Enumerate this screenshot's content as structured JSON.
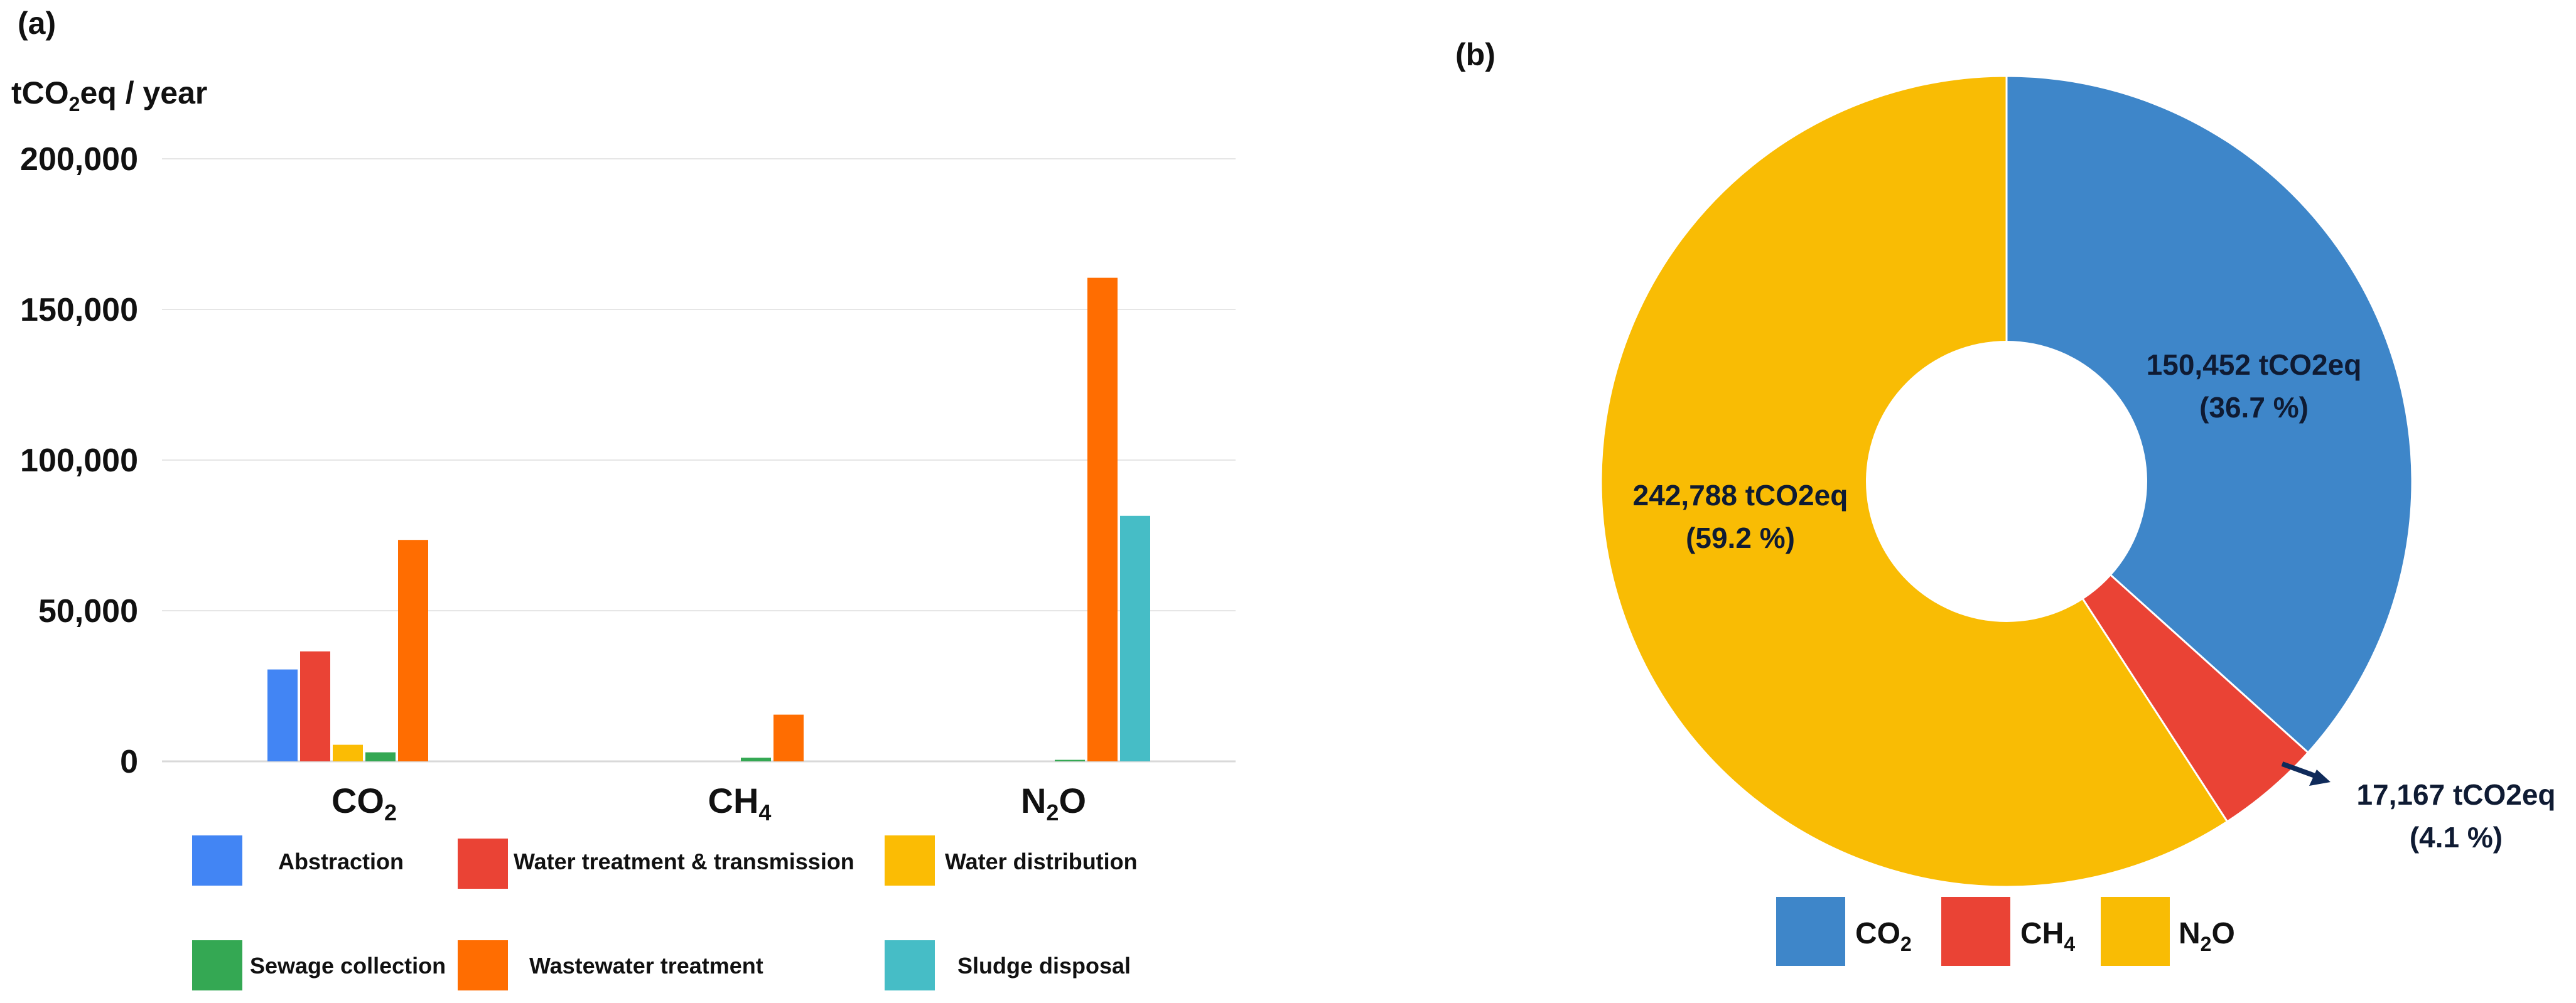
{
  "chart_data": [
    {
      "type": "bar",
      "panel_label": "(a)",
      "ylabel_main": "tCO",
      "ylabel_sub": "2",
      "ylabel_tail": "eq / year",
      "ylim": [
        0,
        200000
      ],
      "yticks": [
        0,
        50000,
        100000,
        150000,
        200000
      ],
      "ytick_labels": [
        "0",
        "50,000",
        "100,000",
        "150,000",
        "200,000"
      ],
      "grid": true,
      "categories": [
        {
          "main": "CO",
          "sub": "2",
          "tail": ""
        },
        {
          "main": "CH",
          "sub": "4",
          "tail": ""
        },
        {
          "main": "N",
          "sub": "2",
          "tail": "O"
        }
      ],
      "series": [
        {
          "name": "Abstraction",
          "color": "#4285f4",
          "values": [
            30500,
            0,
            0
          ]
        },
        {
          "name": "Water treatment & transmission",
          "color": "#ea4335",
          "values": [
            36500,
            0,
            0
          ]
        },
        {
          "name": "Water distribution",
          "color": "#fbbc04",
          "values": [
            5500,
            0,
            0
          ]
        },
        {
          "name": "Sewage collection",
          "color": "#34a853",
          "values": [
            3000,
            1200,
            500
          ]
        },
        {
          "name": "Wastewater treatment",
          "color": "#ff6d01",
          "values": [
            73500,
            15500,
            160500
          ]
        },
        {
          "name": "Sludge disposal",
          "color": "#46bdc6",
          "values": [
            0,
            0,
            81500
          ]
        }
      ],
      "legend_position": "bottom"
    },
    {
      "type": "pie",
      "panel_label": "(b)",
      "donut": true,
      "slices": [
        {
          "name_main": "CO",
          "name_sub": "2",
          "name_tail": "",
          "value": 150452,
          "percent": 36.7,
          "color": "#3e86c9",
          "label_line1": "150,452 tCO2eq",
          "label_line2": "(36.7 %)"
        },
        {
          "name_main": "CH",
          "name_sub": "4",
          "name_tail": "",
          "value": 17167,
          "percent": 4.1,
          "color": "#ea4335",
          "label_line1": "17,167 tCO2eq",
          "label_line2": "(4.1 %)"
        },
        {
          "name_main": "N",
          "name_sub": "2",
          "name_tail": "O",
          "value": 242788,
          "percent": 59.2,
          "color": "#f9bc04",
          "label_line1": "242,788 tCO2eq",
          "label_line2": "(59.2 %)"
        }
      ],
      "legend_position": "bottom"
    }
  ]
}
